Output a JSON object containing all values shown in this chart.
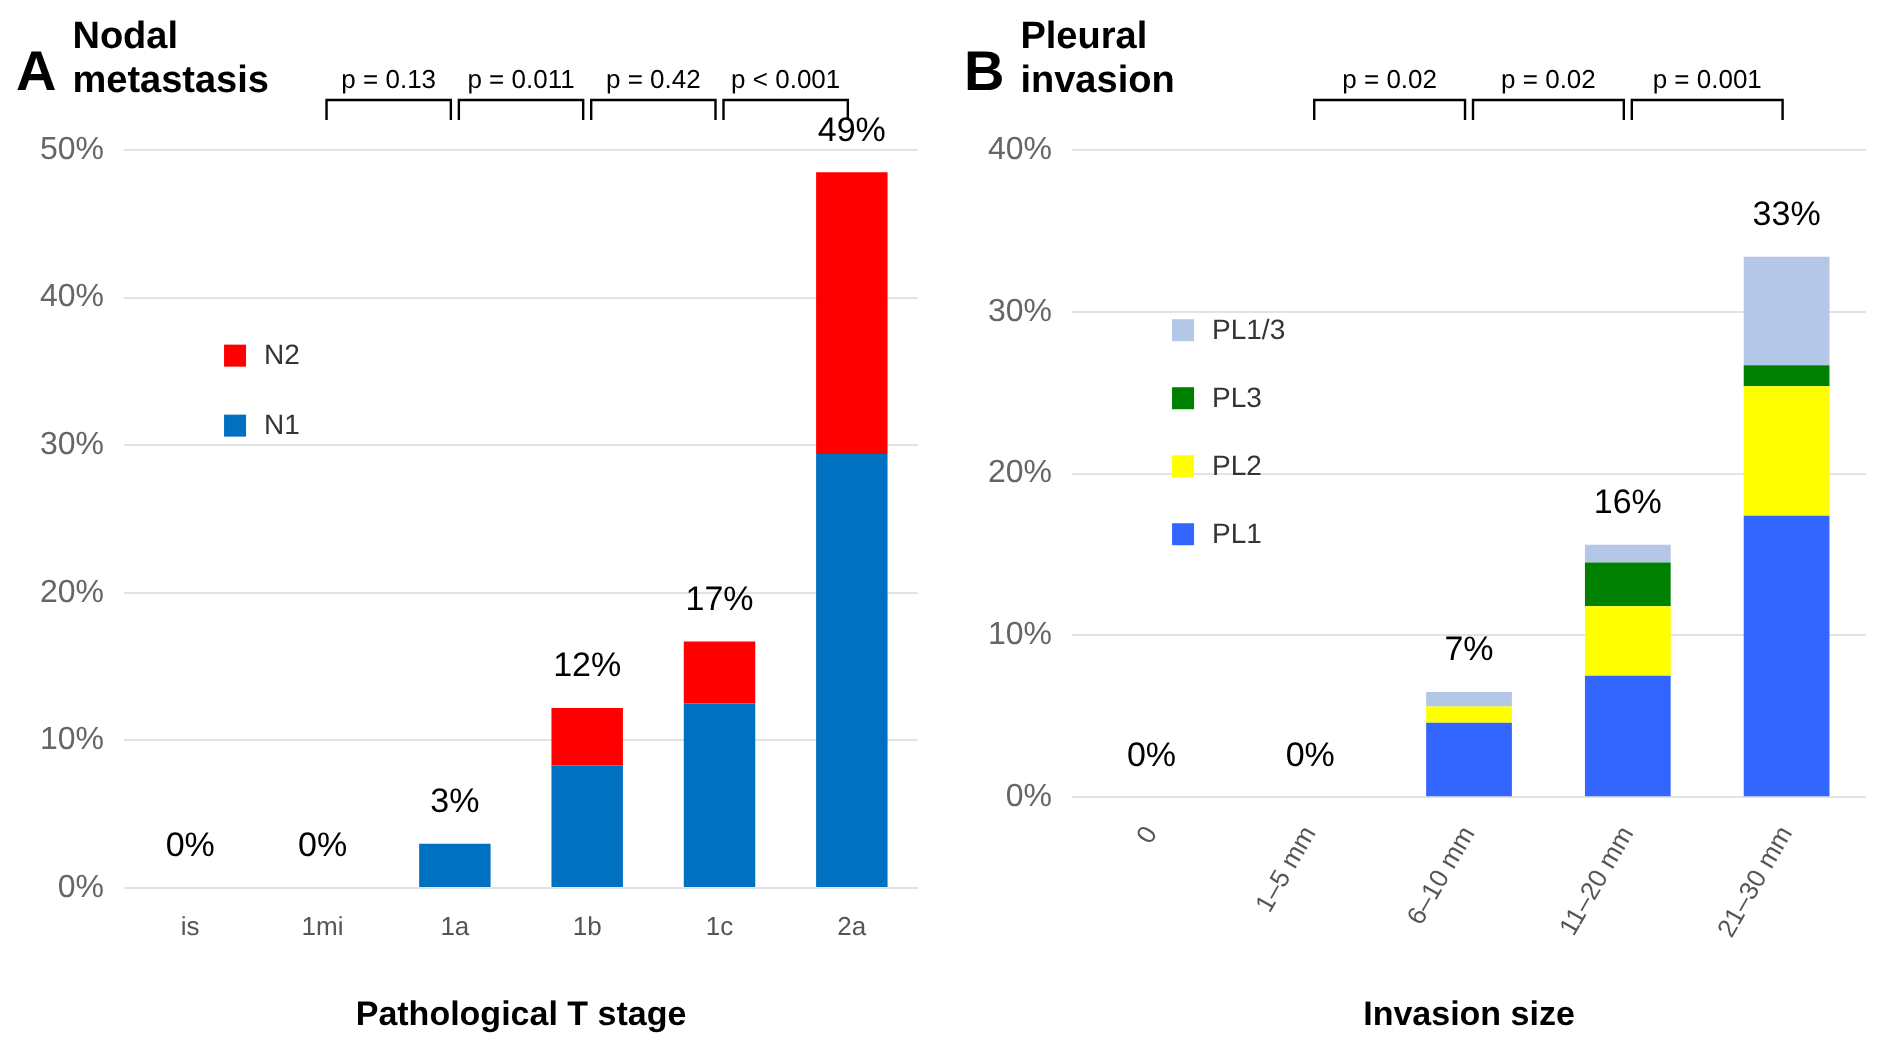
{
  "chart_data": [
    {
      "type": "bar",
      "stacked": true,
      "title": "Nodal metastasis",
      "xlabel": "Pathological T stage",
      "annotations": [
        "A",
        "p = 0.13",
        "p = 0.011",
        "p = 0.42",
        "p < 0.001"
      ],
      "categories": [
        "is",
        "1mi",
        "1a",
        "1b",
        "1c",
        "2a"
      ],
      "series": [
        {
          "name": "N1",
          "color": "#0070c0",
          "values": [
            0,
            0,
            3,
            8.3,
            12.5,
            29.4
          ]
        },
        {
          "name": "N2",
          "color": "#ff0000",
          "values": [
            0,
            0,
            0,
            3.9,
            4.2,
            19.1
          ]
        }
      ],
      "totals": [
        "0%",
        "0%",
        "3%",
        "12%",
        "17%",
        "49%"
      ],
      "ylim": [
        0,
        50
      ],
      "yticks": [
        {
          "value": 0,
          "label": "0%"
        },
        {
          "value": 10,
          "label": "10%"
        },
        {
          "value": 20,
          "label": "20%"
        },
        {
          "value": 30,
          "label": "30%"
        },
        {
          "value": 40,
          "label": "40%"
        },
        {
          "value": 50,
          "label": "50%"
        }
      ],
      "grid": "y",
      "legend": "top left"
    },
    {
      "type": "bar",
      "stacked": true,
      "title": "Pleural invasion",
      "xlabel": "Invasion size",
      "annotations": [
        "B",
        "p = 0.02",
        "p = 0.02",
        "p = 0.001"
      ],
      "categories": [
        "0",
        "1–5 mm",
        "6–10 mm",
        "11–20 mm",
        "21–30 mm"
      ],
      "series": [
        {
          "name": "PL1",
          "color": "#3366ff",
          "values": [
            0,
            0,
            4.6,
            7.5,
            17.4
          ]
        },
        {
          "name": "PL2",
          "color": "#ffff00",
          "values": [
            0,
            0,
            1.0,
            4.3,
            8.0
          ]
        },
        {
          "name": "PL3",
          "color": "#008000",
          "values": [
            0,
            0,
            0,
            2.7,
            1.3
          ]
        },
        {
          "name": "PL1/3",
          "color": "#b4c7e7",
          "values": [
            0,
            0,
            0.9,
            1.1,
            6.7
          ]
        }
      ],
      "totals": [
        "0%",
        "0%",
        "7%",
        "16%",
        "33%"
      ],
      "ylim": [
        0,
        40
      ],
      "yticks": [
        {
          "value": 0,
          "label": "0%"
        },
        {
          "value": 10,
          "label": "10%"
        },
        {
          "value": 20,
          "label": "20%"
        },
        {
          "value": 30,
          "label": "30%"
        },
        {
          "value": 40,
          "label": "40%"
        }
      ],
      "grid": "y",
      "legend": "top left"
    }
  ]
}
